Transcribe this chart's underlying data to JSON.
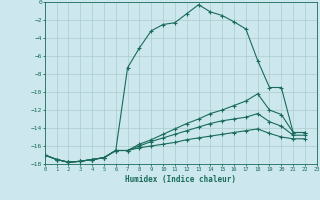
{
  "xlabel": "Humidex (Indice chaleur)",
  "ylabel": "",
  "bg_color": "#cce8ee",
  "grid_color": "#aacccc",
  "line_color": "#1a6b5a",
  "xlim": [
    0,
    23
  ],
  "ylim": [
    -18,
    0
  ],
  "xticks": [
    0,
    1,
    2,
    3,
    4,
    5,
    6,
    7,
    8,
    9,
    10,
    11,
    12,
    13,
    14,
    15,
    16,
    17,
    18,
    19,
    20,
    21,
    22,
    23
  ],
  "yticks": [
    0,
    -2,
    -4,
    -6,
    -8,
    -10,
    -12,
    -14,
    -16,
    -18
  ],
  "curve1_x": [
    0,
    1,
    2,
    3,
    4,
    5,
    6,
    7,
    8,
    9,
    10,
    11,
    12,
    13,
    14,
    15,
    16,
    17,
    18,
    19,
    20,
    21,
    22
  ],
  "curve1_y": [
    -17,
    -17.5,
    -17.8,
    -17.7,
    -17.5,
    -17.3,
    -16.5,
    -7.3,
    -5.1,
    -3.2,
    -2.5,
    -2.3,
    -1.3,
    -0.3,
    -1.1,
    -1.5,
    -2.2,
    -3.0,
    -6.5,
    -9.5,
    -9.5,
    -14.5,
    -14.5
  ],
  "curve2_x": [
    0,
    1,
    2,
    3,
    4,
    5,
    6,
    7,
    8,
    9,
    10,
    11,
    12,
    13,
    14,
    15,
    16,
    17,
    18,
    19,
    20,
    21,
    22
  ],
  "curve2_y": [
    -17,
    -17.5,
    -17.8,
    -17.7,
    -17.5,
    -17.3,
    -16.5,
    -16.5,
    -15.8,
    -15.3,
    -14.7,
    -14.1,
    -13.5,
    -13.0,
    -12.4,
    -12.0,
    -11.5,
    -11.0,
    -10.2,
    -12.0,
    -12.5,
    -14.5,
    -14.5
  ],
  "curve3_x": [
    0,
    1,
    2,
    3,
    4,
    5,
    6,
    7,
    8,
    9,
    10,
    11,
    12,
    13,
    14,
    15,
    16,
    17,
    18,
    19,
    20,
    21,
    22
  ],
  "curve3_y": [
    -17,
    -17.5,
    -17.8,
    -17.7,
    -17.5,
    -17.3,
    -16.5,
    -16.5,
    -16.0,
    -15.5,
    -15.1,
    -14.7,
    -14.3,
    -13.9,
    -13.5,
    -13.2,
    -13.0,
    -12.8,
    -12.4,
    -13.3,
    -13.8,
    -14.8,
    -14.8
  ],
  "curve4_x": [
    0,
    1,
    2,
    3,
    4,
    5,
    6,
    7,
    8,
    9,
    10,
    11,
    12,
    13,
    14,
    15,
    16,
    17,
    18,
    19,
    20,
    21,
    22
  ],
  "curve4_y": [
    -17,
    -17.5,
    -17.8,
    -17.7,
    -17.5,
    -17.3,
    -16.5,
    -16.5,
    -16.2,
    -16.0,
    -15.8,
    -15.6,
    -15.3,
    -15.1,
    -14.9,
    -14.7,
    -14.5,
    -14.3,
    -14.1,
    -14.6,
    -15.0,
    -15.2,
    -15.2
  ]
}
